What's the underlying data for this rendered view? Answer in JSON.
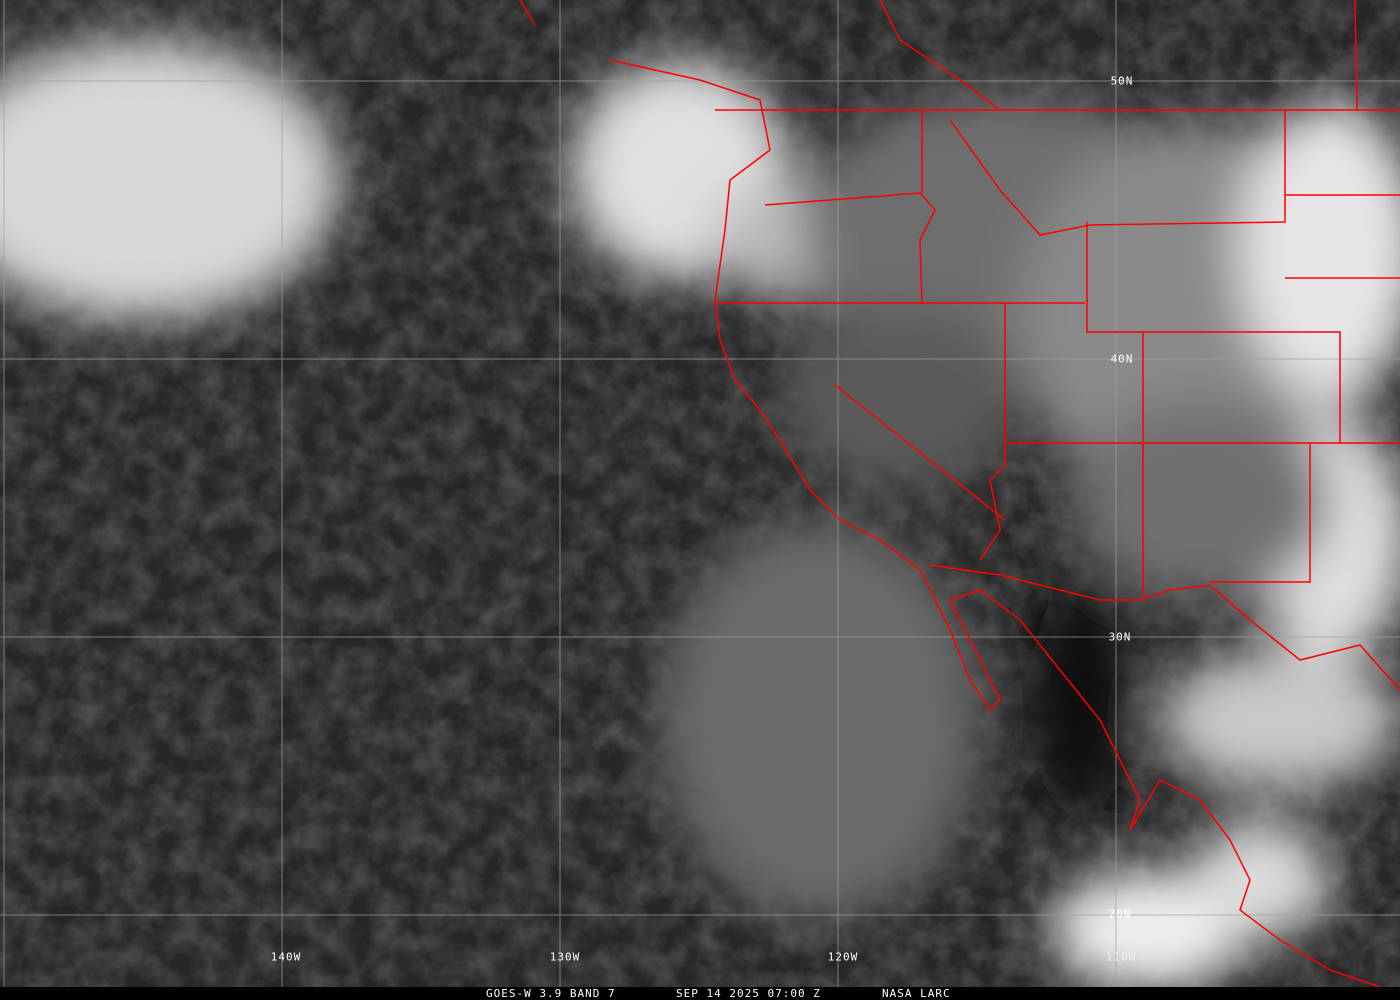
{
  "image": {
    "type": "satellite infrared imagery with map overlay",
    "border_color": "#ff0000",
    "grid_color": "#a0a0a0"
  },
  "grid_labels": {
    "longitude": [
      "140W",
      "130W",
      "120W",
      "110W"
    ],
    "latitude": [
      "50N",
      "40N",
      "30N",
      "20N"
    ]
  },
  "caption": {
    "product": "GOES-W 3.9 BAND 7",
    "datetime": "SEP 14 2025 07:00 Z",
    "source": "NASA LARC"
  }
}
